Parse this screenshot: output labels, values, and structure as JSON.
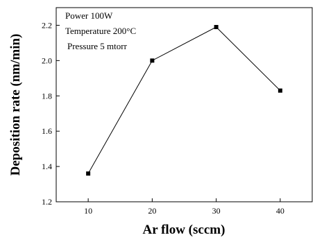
{
  "chart_data": {
    "type": "line",
    "title": "",
    "xlabel": "Ar flow (sccm)",
    "ylabel": "Deposition rate (nm/min)",
    "x": [
      10,
      20,
      30,
      40
    ],
    "series": [
      {
        "values": [
          1.36,
          2.0,
          2.19,
          1.83
        ]
      }
    ],
    "xlim": [
      5,
      45
    ],
    "ylim": [
      1.2,
      2.3
    ],
    "xticks": [
      "10",
      "20",
      "30",
      "40"
    ],
    "yticks": [
      "1.2",
      "1.4",
      "1.6",
      "1.8",
      "2.0",
      "2.2"
    ],
    "annotations": [
      "Power 100W",
      "Temperature 200°C",
      "Pressure 5 mtorr"
    ],
    "grid": false,
    "marker": "square",
    "color": "#000000"
  }
}
